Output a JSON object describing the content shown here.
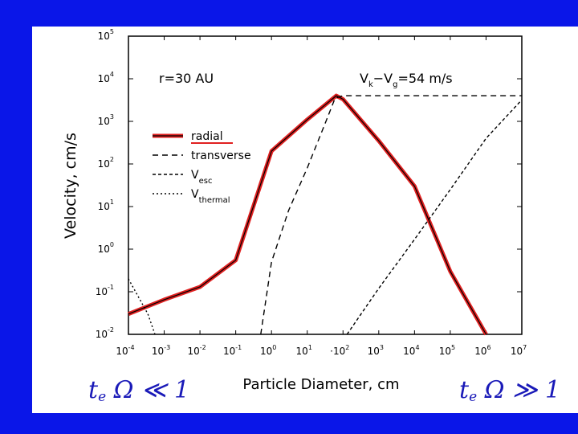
{
  "chart_data": {
    "type": "line",
    "xscale": "log",
    "yscale": "log",
    "xlim": [
      0.0001,
      10000000
    ],
    "ylim": [
      0.01,
      100000
    ],
    "xlabel": "Particle Diameter, cm",
    "ylabel": "Velocity, cm/s",
    "annotation_left": "r=30 AU",
    "annotation_right": "V_k−V_g=54 m/s",
    "x_ticks": [
      {
        "base": "10",
        "exp": "-4"
      },
      {
        "base": "10",
        "exp": "-3"
      },
      {
        "base": "10",
        "exp": "-2"
      },
      {
        "base": "10",
        "exp": "-1"
      },
      {
        "base": "10",
        "exp": "0"
      },
      {
        "base": "10",
        "exp": "1"
      },
      {
        "base": "·10",
        "exp": "2"
      },
      {
        "base": "10",
        "exp": "3"
      },
      {
        "base": "10",
        "exp": "4"
      },
      {
        "base": "10",
        "exp": "5"
      },
      {
        "base": "10",
        "exp": "6"
      },
      {
        "base": "10",
        "exp": "7"
      }
    ],
    "y_ticks": [
      {
        "base": "10",
        "exp": "-2"
      },
      {
        "base": "10",
        "exp": "-1"
      },
      {
        "base": "10",
        "exp": "0"
      },
      {
        "base": "10",
        "exp": "1"
      },
      {
        "base": "10",
        "exp": "2"
      },
      {
        "base": "10",
        "exp": "3"
      },
      {
        "base": "10",
        "exp": "4"
      },
      {
        "base": "10",
        "exp": "5"
      }
    ],
    "legend": {
      "placement": "left",
      "entries": [
        {
          "label": "radial",
          "style": "solid"
        },
        {
          "label": "transverse",
          "style": "dashed"
        },
        {
          "label": "V",
          "sub": "esc",
          "style": "dense-dashed"
        },
        {
          "label": "V",
          "sub": "thermal",
          "style": "dotted"
        }
      ]
    },
    "series": [
      {
        "name": "radial",
        "style": "solid",
        "color": "#e02020",
        "points": [
          [
            0.0001,
            0.03
          ],
          [
            0.001,
            0.065
          ],
          [
            0.01,
            0.13
          ],
          [
            0.1,
            0.55
          ],
          [
            1,
            200
          ],
          [
            10,
            1100
          ],
          [
            65,
            4000
          ],
          [
            100,
            3300
          ],
          [
            1000,
            350
          ],
          [
            10000,
            30
          ],
          [
            100000,
            0.3
          ],
          [
            1000000,
            0.01
          ]
        ]
      },
      {
        "name": "transverse",
        "style": "dashed",
        "color": "#000000",
        "points": [
          [
            0.5,
            0.01
          ],
          [
            1,
            0.5
          ],
          [
            3,
            8
          ],
          [
            10,
            80
          ],
          [
            30,
            800
          ],
          [
            60,
            3500
          ],
          [
            100,
            4000
          ],
          [
            10000000,
            4000
          ]
        ]
      },
      {
        "name": "V_thermal",
        "style": "dotted",
        "color": "#000000",
        "points": [
          [
            0.0001,
            0.2
          ],
          [
            0.00035,
            0.03
          ],
          [
            0.00055,
            0.01
          ]
        ]
      },
      {
        "name": "V_esc",
        "style": "dense-dashed",
        "color": "#000000",
        "points": [
          [
            130,
            0.01
          ],
          [
            1000,
            0.12
          ],
          [
            10000,
            1.7
          ],
          [
            100000,
            25
          ],
          [
            1000000,
            400
          ],
          [
            10000000,
            3200
          ]
        ]
      }
    ]
  },
  "handwritten": {
    "left": {
      "main": "t",
      "sub": "e",
      "rest": " Ω ≪ 1"
    },
    "right": {
      "main": "t",
      "sub": "e",
      "rest": " Ω ≫ 1"
    }
  },
  "colors": {
    "slide_background": "#0a16e8",
    "radial_highlight": "#e02020",
    "handwriting": "#1a1ab8"
  }
}
